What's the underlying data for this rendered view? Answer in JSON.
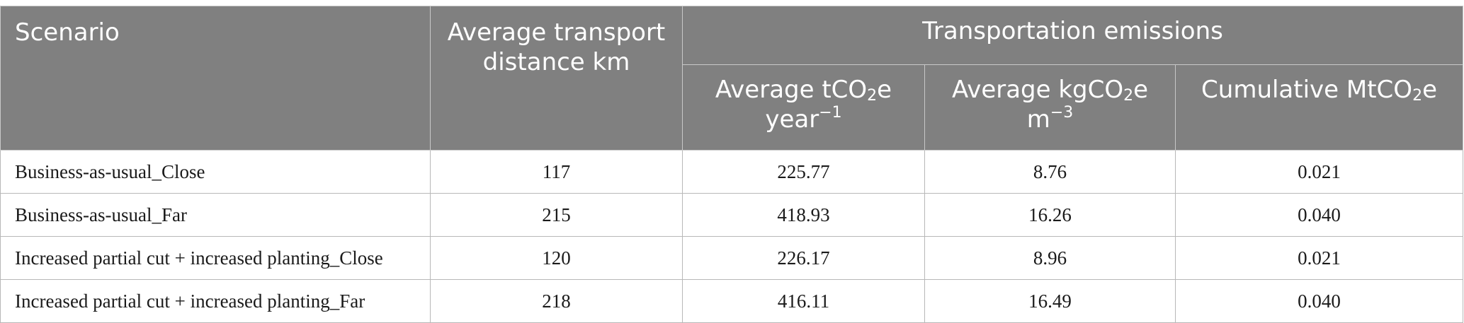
{
  "table": {
    "headers": {
      "scenario": "Scenario",
      "distance_line1": "Average transport",
      "distance_line2": "distance km",
      "emissions_group": "Transportation emissions",
      "col_t": {
        "a": "Average tCO",
        "sub": "2",
        "b": "e",
        "line2": "year",
        "sup": "−1"
      },
      "col_kg": {
        "a": "Average kgCO",
        "sub": "2",
        "b": "e",
        "line2": "m",
        "sup": "−3"
      },
      "col_mt": {
        "a": "Cumulative MtCO",
        "sub": "2",
        "b": "e"
      }
    },
    "rows": [
      {
        "scenario": "Business-as-usual_Close",
        "distance": "117",
        "t_per_year": "225.77",
        "kg_per_m3": "8.76",
        "cumulative": "0.021"
      },
      {
        "scenario": "Business-as-usual_Far",
        "distance": "215",
        "t_per_year": "418.93",
        "kg_per_m3": "16.26",
        "cumulative": "0.040"
      },
      {
        "scenario": "Increased partial cut + increased planting_Close",
        "distance": "120",
        "t_per_year": "226.17",
        "kg_per_m3": "8.96",
        "cumulative": "0.021"
      },
      {
        "scenario": "Increased partial cut + increased planting_Far",
        "distance": "218",
        "t_per_year": "416.11",
        "kg_per_m3": "16.49",
        "cumulative": "0.040"
      }
    ]
  },
  "colors": {
    "header_bg": "#808080",
    "header_text": "#ffffff",
    "border": "#b8b8b8"
  }
}
